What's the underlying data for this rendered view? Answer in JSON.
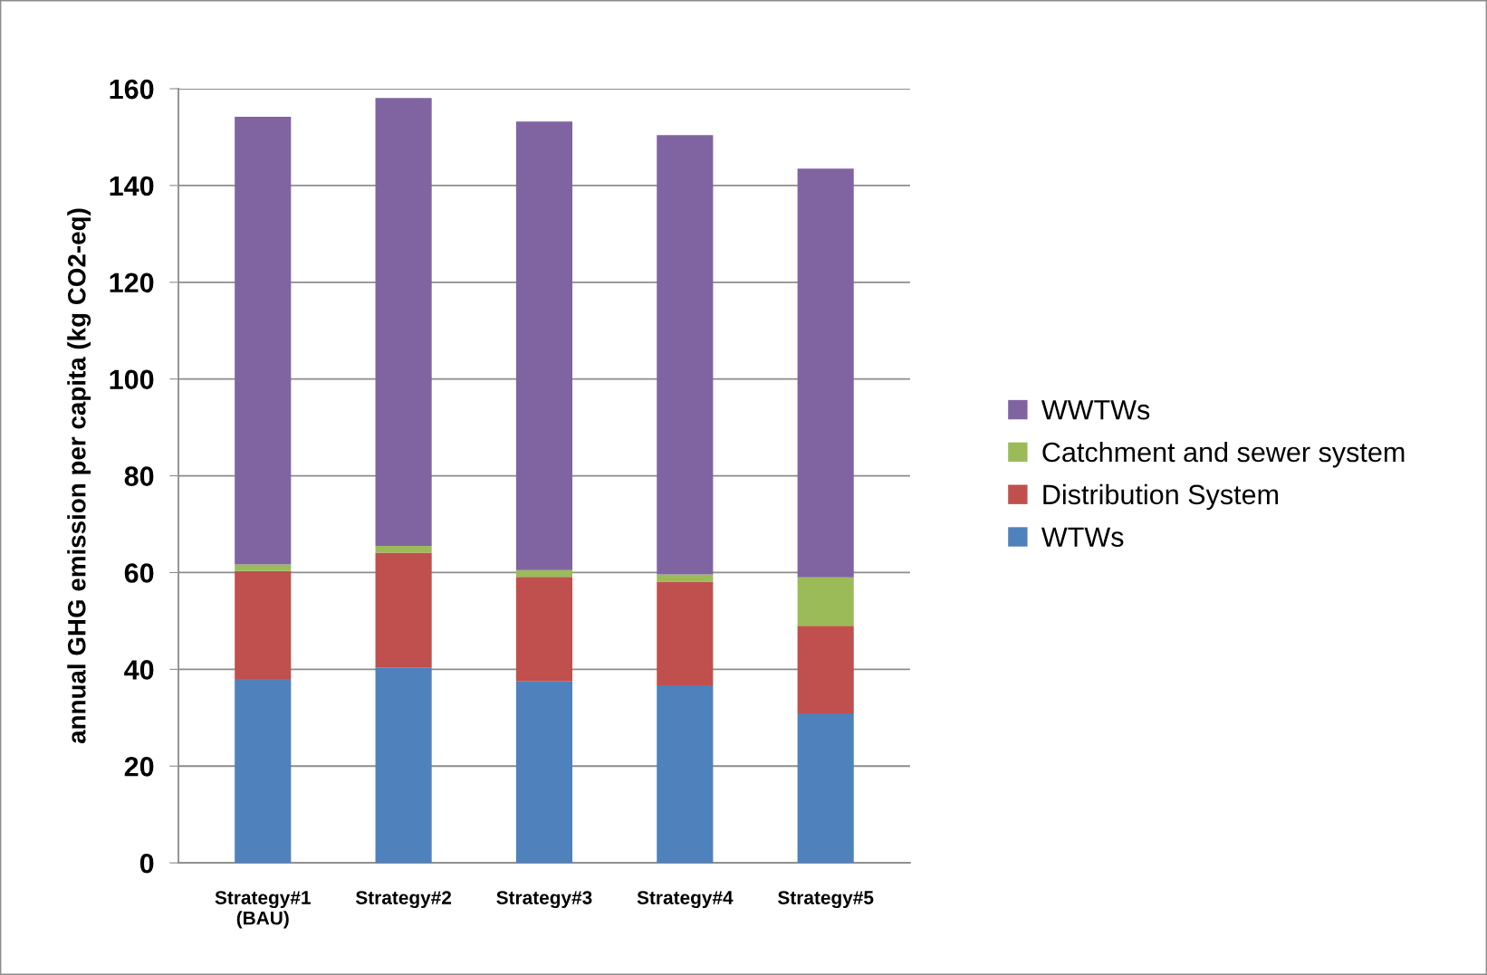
{
  "chart_data": {
    "type": "bar",
    "stacked": true,
    "ylabel": "annual GHG emission per capita (kg CO2-eq)",
    "categories": [
      "Strategy#1\n(BAU)",
      "Strategy#2",
      "Strategy#3",
      "Strategy#4",
      "Strategy#5"
    ],
    "series": [
      {
        "name": "WTWs",
        "color": "#4f81bd",
        "values": [
          38.0,
          40.4,
          37.5,
          36.7,
          30.9
        ]
      },
      {
        "name": "Distribution System",
        "color": "#c0504d",
        "values": [
          22.3,
          23.7,
          21.6,
          21.4,
          18.1
        ]
      },
      {
        "name": "Catchment and sewer system",
        "color": "#9bbb59",
        "values": [
          1.4,
          1.4,
          1.4,
          1.5,
          10.0
        ]
      },
      {
        "name": "WWTWs",
        "color": "#8064a2",
        "values": [
          92.5,
          92.6,
          92.7,
          90.8,
          84.5
        ]
      }
    ],
    "ylim": [
      0,
      160
    ],
    "yticks": [
      0,
      20,
      40,
      60,
      80,
      100,
      120,
      140,
      160
    ],
    "grid": "y",
    "legend": "right"
  }
}
